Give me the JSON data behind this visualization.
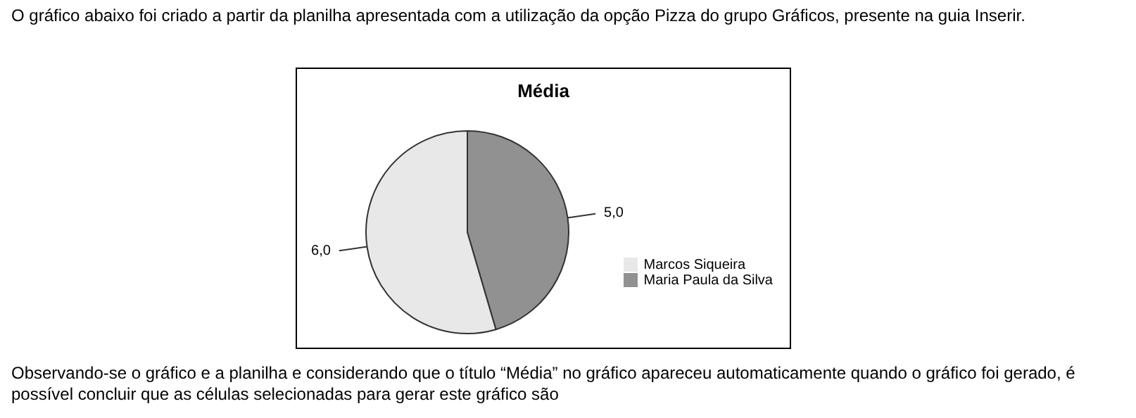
{
  "chart_data": {
    "type": "pie",
    "title": "Média",
    "categories": [
      "Maria Paula da Silva",
      "Marcos Siqueira"
    ],
    "values": [
      5,
      6
    ],
    "value_labels": [
      "5,0",
      "6,0"
    ],
    "colors": [
      "#919191",
      "#e8e8e8"
    ],
    "legend": "right",
    "annotations": [
      "O gráfico abaixo foi criado a partir da planilha apresentada com a utilização da opção Pizza do grupo Gráficos, presente na guia Inserir.",
      "Observando-se o gráfico e a planilha e considerando que o título “Média” no gráfico apareceu automaticamente quando o gráfico foi gerado, é possível concluir que as células selecionadas para gerar este gráfico são"
    ]
  }
}
